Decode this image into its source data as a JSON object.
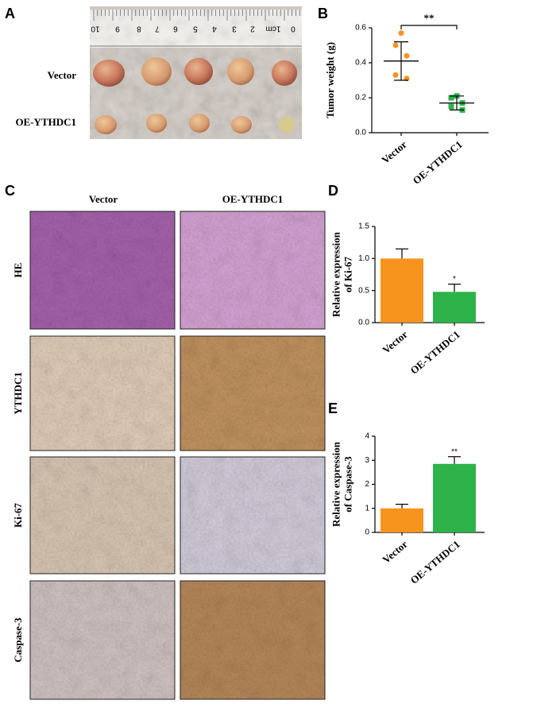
{
  "panel_a": {
    "label": "A",
    "ruler_labels": [
      "10",
      "9",
      "8",
      "7",
      "6",
      "5",
      "4",
      "3",
      "2",
      "1cm",
      "0"
    ],
    "row_labels": [
      "Vector",
      "OE-YTHDC1"
    ]
  },
  "panel_c": {
    "label": "C",
    "column_labels": [
      "Vector",
      "OE-YTHDC1"
    ],
    "row_labels": [
      "HE",
      "YTHDC1",
      "Ki-67",
      "Caspase-3"
    ]
  },
  "chart_data": [
    {
      "type": "dot",
      "panel_label": "B",
      "ylabel": [
        "Tumor weight (g)"
      ],
      "categories": [
        "Vector",
        "OE-YTHDC1"
      ],
      "colors": [
        "#f7941d",
        "#2db34a"
      ],
      "points": [
        [
          0.57,
          0.5,
          0.44,
          0.33,
          0.31
        ],
        [
          0.21,
          0.2,
          0.17,
          0.15,
          0.13
        ]
      ],
      "means": [
        0.41,
        0.17
      ],
      "sds": [
        0.11,
        0.04
      ],
      "significance": "**",
      "ylim": [
        0,
        0.6
      ],
      "yticks": [
        {
          "value": 0,
          "label": "0.0"
        },
        {
          "value": 0.2,
          "label": "0.2"
        },
        {
          "value": 0.4,
          "label": "0.4"
        },
        {
          "value": 0.6,
          "label": "0.6"
        }
      ]
    },
    {
      "type": "bar",
      "panel_label": "D",
      "ylabel": [
        "Relative expression",
        "of Ki-67"
      ],
      "categories": [
        "Vector",
        "OE-YTHDC1"
      ],
      "colors": [
        "#f7941d",
        "#2db34a"
      ],
      "values": [
        1.0,
        0.48
      ],
      "errors": [
        0.15,
        0.12
      ],
      "significance": "*",
      "ylim": [
        0,
        1.5
      ],
      "yticks": [
        {
          "value": 0,
          "label": "0.0"
        },
        {
          "value": 0.5,
          "label": "0.5"
        },
        {
          "value": 1,
          "label": "1.0"
        },
        {
          "value": 1.5,
          "label": "1.5"
        }
      ]
    },
    {
      "type": "bar",
      "panel_label": "E",
      "ylabel": [
        "Relative expression",
        "of Caspase-3"
      ],
      "categories": [
        "Vector",
        "OE-YTHDC1"
      ],
      "colors": [
        "#f7941d",
        "#2db34a"
      ],
      "values": [
        1.0,
        2.85
      ],
      "errors": [
        0.17,
        0.3
      ],
      "significance": "**",
      "ylim": [
        0,
        4
      ],
      "yticks": [
        0,
        1,
        2,
        3,
        4
      ]
    }
  ]
}
